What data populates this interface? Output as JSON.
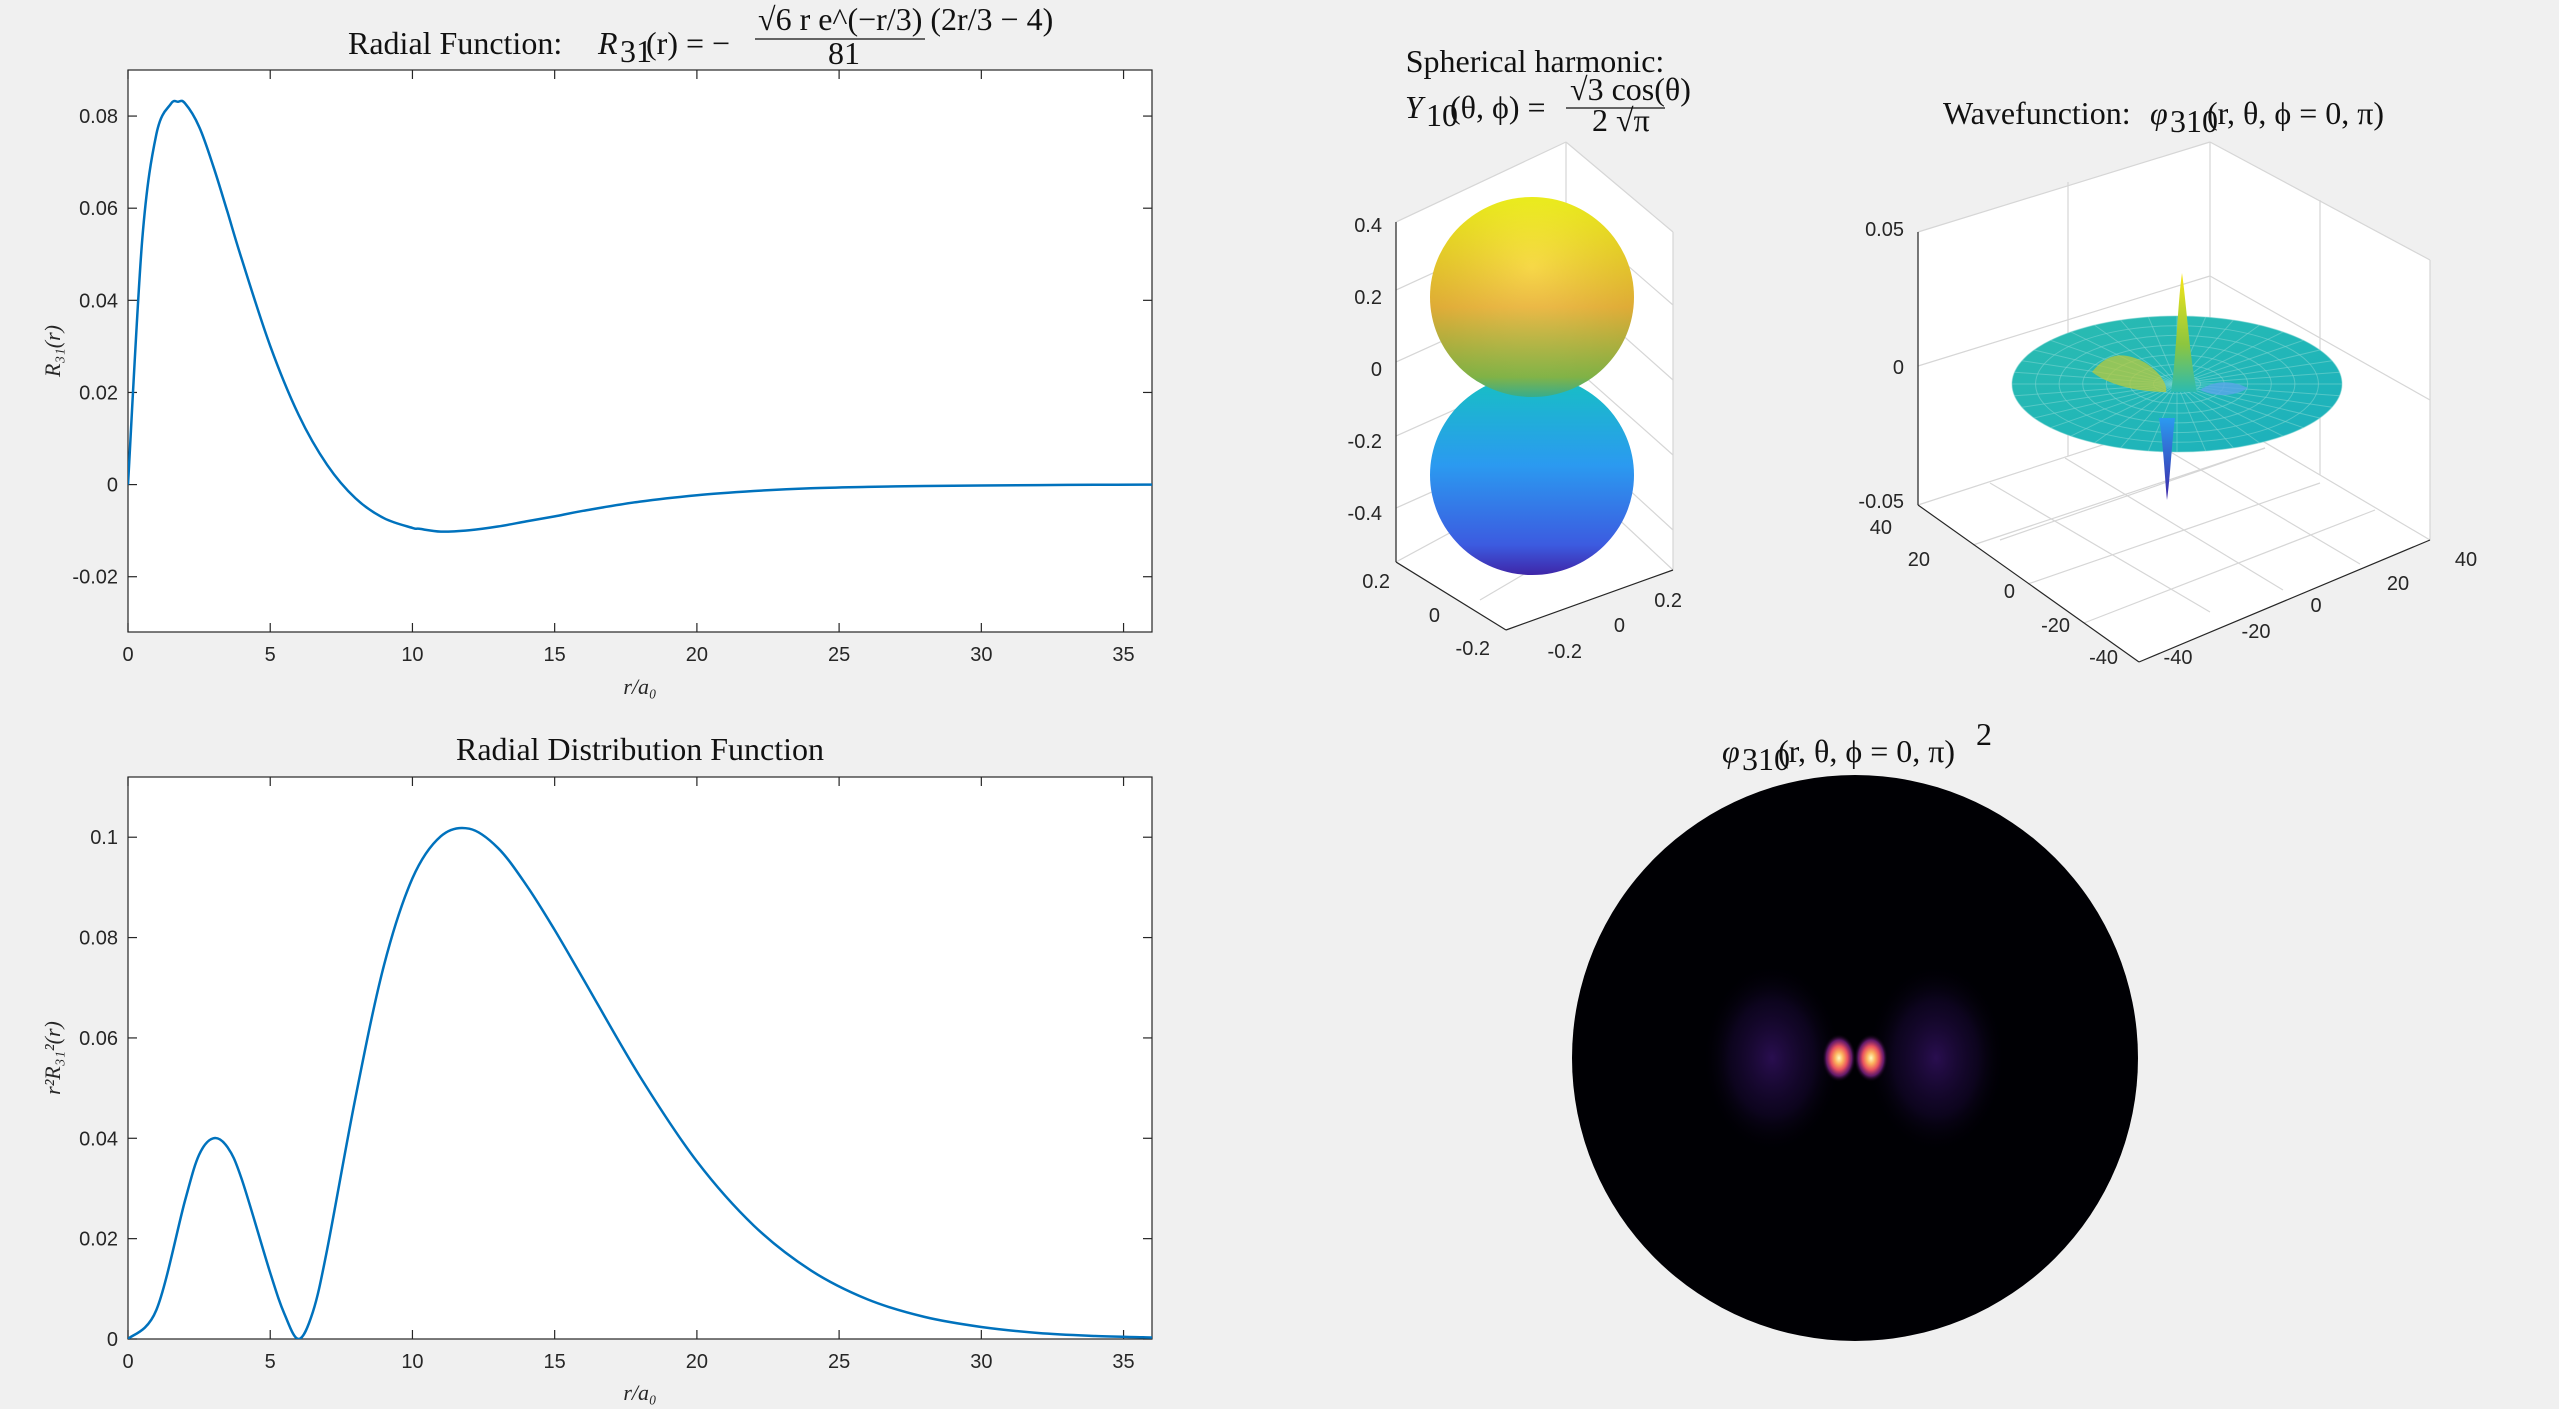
{
  "window": {
    "background": "#f0f0f0"
  },
  "chart_data": [
    {
      "id": "radial",
      "type": "line",
      "title_text": "Radial Function: ",
      "title_math": "R31(r) = −√6 r e^(−r/3) (2r/3 − 4) / 81",
      "title_math_lhs": "R",
      "title_math_sub": "31",
      "title_math_rest": "(r) = −",
      "title_frac_num": "√6 r e^(−r/3) (2r/3 − 4)",
      "title_frac_den": "81",
      "xlabel": "r/a₀",
      "ylabel": "R₃₁(r)",
      "xlim": [
        0,
        36
      ],
      "ylim": [
        -0.032,
        0.09
      ],
      "xticks": [
        "0",
        "5",
        "10",
        "15",
        "20",
        "25",
        "30",
        "35"
      ],
      "yticks": [
        "-0.02",
        "0",
        "0.02",
        "0.04",
        "0.06",
        "0.08"
      ],
      "color": "#0072bd",
      "series": [
        {
          "x": [
            0,
            0.5,
            1,
            1.5,
            1.76,
            2,
            2.5,
            3,
            3.5,
            4,
            5,
            6,
            7,
            8,
            9,
            10,
            10.24,
            11,
            12,
            13,
            14,
            15,
            16,
            18,
            20,
            22,
            24,
            26,
            28,
            30,
            32,
            34,
            36
          ],
          "values": [
            0,
            0.0531,
            0.0761,
            0.0826,
            0.0831,
            0.0828,
            0.0777,
            0.0691,
            0.0591,
            0.0489,
            0.0301,
            0.0151,
            0.0043,
            -0.003,
            -0.0073,
            -0.0094,
            -0.0096,
            -0.0102,
            -0.0099,
            -0.0091,
            -0.008,
            -0.0069,
            -0.0057,
            -0.0037,
            -0.0023,
            -0.0014,
            -0.0008,
            -0.0005,
            -0.0003,
            -0.0002,
            -0.0001,
            -5e-05,
            0
          ]
        }
      ]
    },
    {
      "id": "rdf",
      "type": "line",
      "title": "Radial Distribution Function",
      "xlabel": "r/a₀",
      "ylabel": "r²R₃₁²(r)",
      "xlim": [
        0,
        36
      ],
      "ylim": [
        0,
        0.112
      ],
      "xticks": [
        "0",
        "5",
        "10",
        "15",
        "20",
        "25",
        "30",
        "35"
      ],
      "yticks": [
        "0",
        "0.02",
        "0.04",
        "0.06",
        "0.08",
        "0.1"
      ],
      "color": "#0072bd",
      "series": [
        {
          "x": [
            0,
            1,
            2,
            2.5,
            3,
            3.5,
            4,
            5,
            5.5,
            6,
            6.5,
            7,
            8,
            9,
            10,
            11,
            12,
            13,
            14,
            15,
            16,
            18,
            20,
            22,
            24,
            26,
            28,
            30,
            32,
            34,
            36
          ],
          "values": [
            0,
            0.0058,
            0.0275,
            0.0367,
            0.04,
            0.0382,
            0.0318,
            0.0132,
            0.005,
            0,
            0.0054,
            0.0178,
            0.0482,
            0.0745,
            0.0918,
            0.1002,
            0.1017,
            0.0979,
            0.0905,
            0.0815,
            0.0718,
            0.0523,
            0.0354,
            0.0226,
            0.0137,
            0.0079,
            0.0044,
            0.0024,
            0.0012,
            0.0006,
            0.0003
          ]
        }
      ]
    },
    {
      "id": "spherical",
      "type": "surface3d",
      "title_line1": "Spherical harmonic:",
      "title_lhs": "Y",
      "title_sub": "10",
      "title_args": "(θ, ϕ) = ",
      "title_frac_num": "√3 cos(θ)",
      "title_frac_den": "2 √π",
      "zticks": [
        "0.4",
        "0.2",
        "0",
        "-0.2",
        "-0.4"
      ],
      "xticks": [
        "0.2",
        "0",
        "-0.2"
      ],
      "yticks": [
        "-0.2",
        "0",
        "0.2"
      ],
      "zlim": [
        -0.5,
        0.5
      ],
      "colormap": [
        "#3e26a8",
        "#2f8ef2",
        "#16b9c0",
        "#7ec74d",
        "#f3c933",
        "#f9fb0e"
      ]
    },
    {
      "id": "wavefunction",
      "type": "surface3d",
      "title_text": "Wavefunction: ",
      "title_lhs": "φ",
      "title_sub": "310",
      "title_args": "(r, θ, ϕ = 0, π)",
      "zticks": [
        "0.05",
        "0",
        "-0.05"
      ],
      "xticks": [
        "40",
        "20",
        "0",
        "-20",
        "-40"
      ],
      "yticks": [
        "-40",
        "-20",
        "0",
        "20",
        "40"
      ],
      "zlim": [
        -0.05,
        0.05
      ],
      "peak_values": {
        "positive_max": 0.032,
        "negative_min": -0.045
      },
      "colormap": [
        "#3e26a8",
        "#2f8ef2",
        "#16b9c0",
        "#7ec74d",
        "#f3c933",
        "#f9fb0e"
      ]
    },
    {
      "id": "density",
      "type": "heatmap",
      "title_lhs": "φ",
      "title_sub": "310",
      "title_args": "(r, θ, ϕ = 0, π)",
      "title_sup": "2",
      "colormap": [
        "#000004",
        "#2d1160",
        "#721f81",
        "#b5367a",
        "#f1605d",
        "#feaf77",
        "#fcfdbf"
      ]
    }
  ]
}
